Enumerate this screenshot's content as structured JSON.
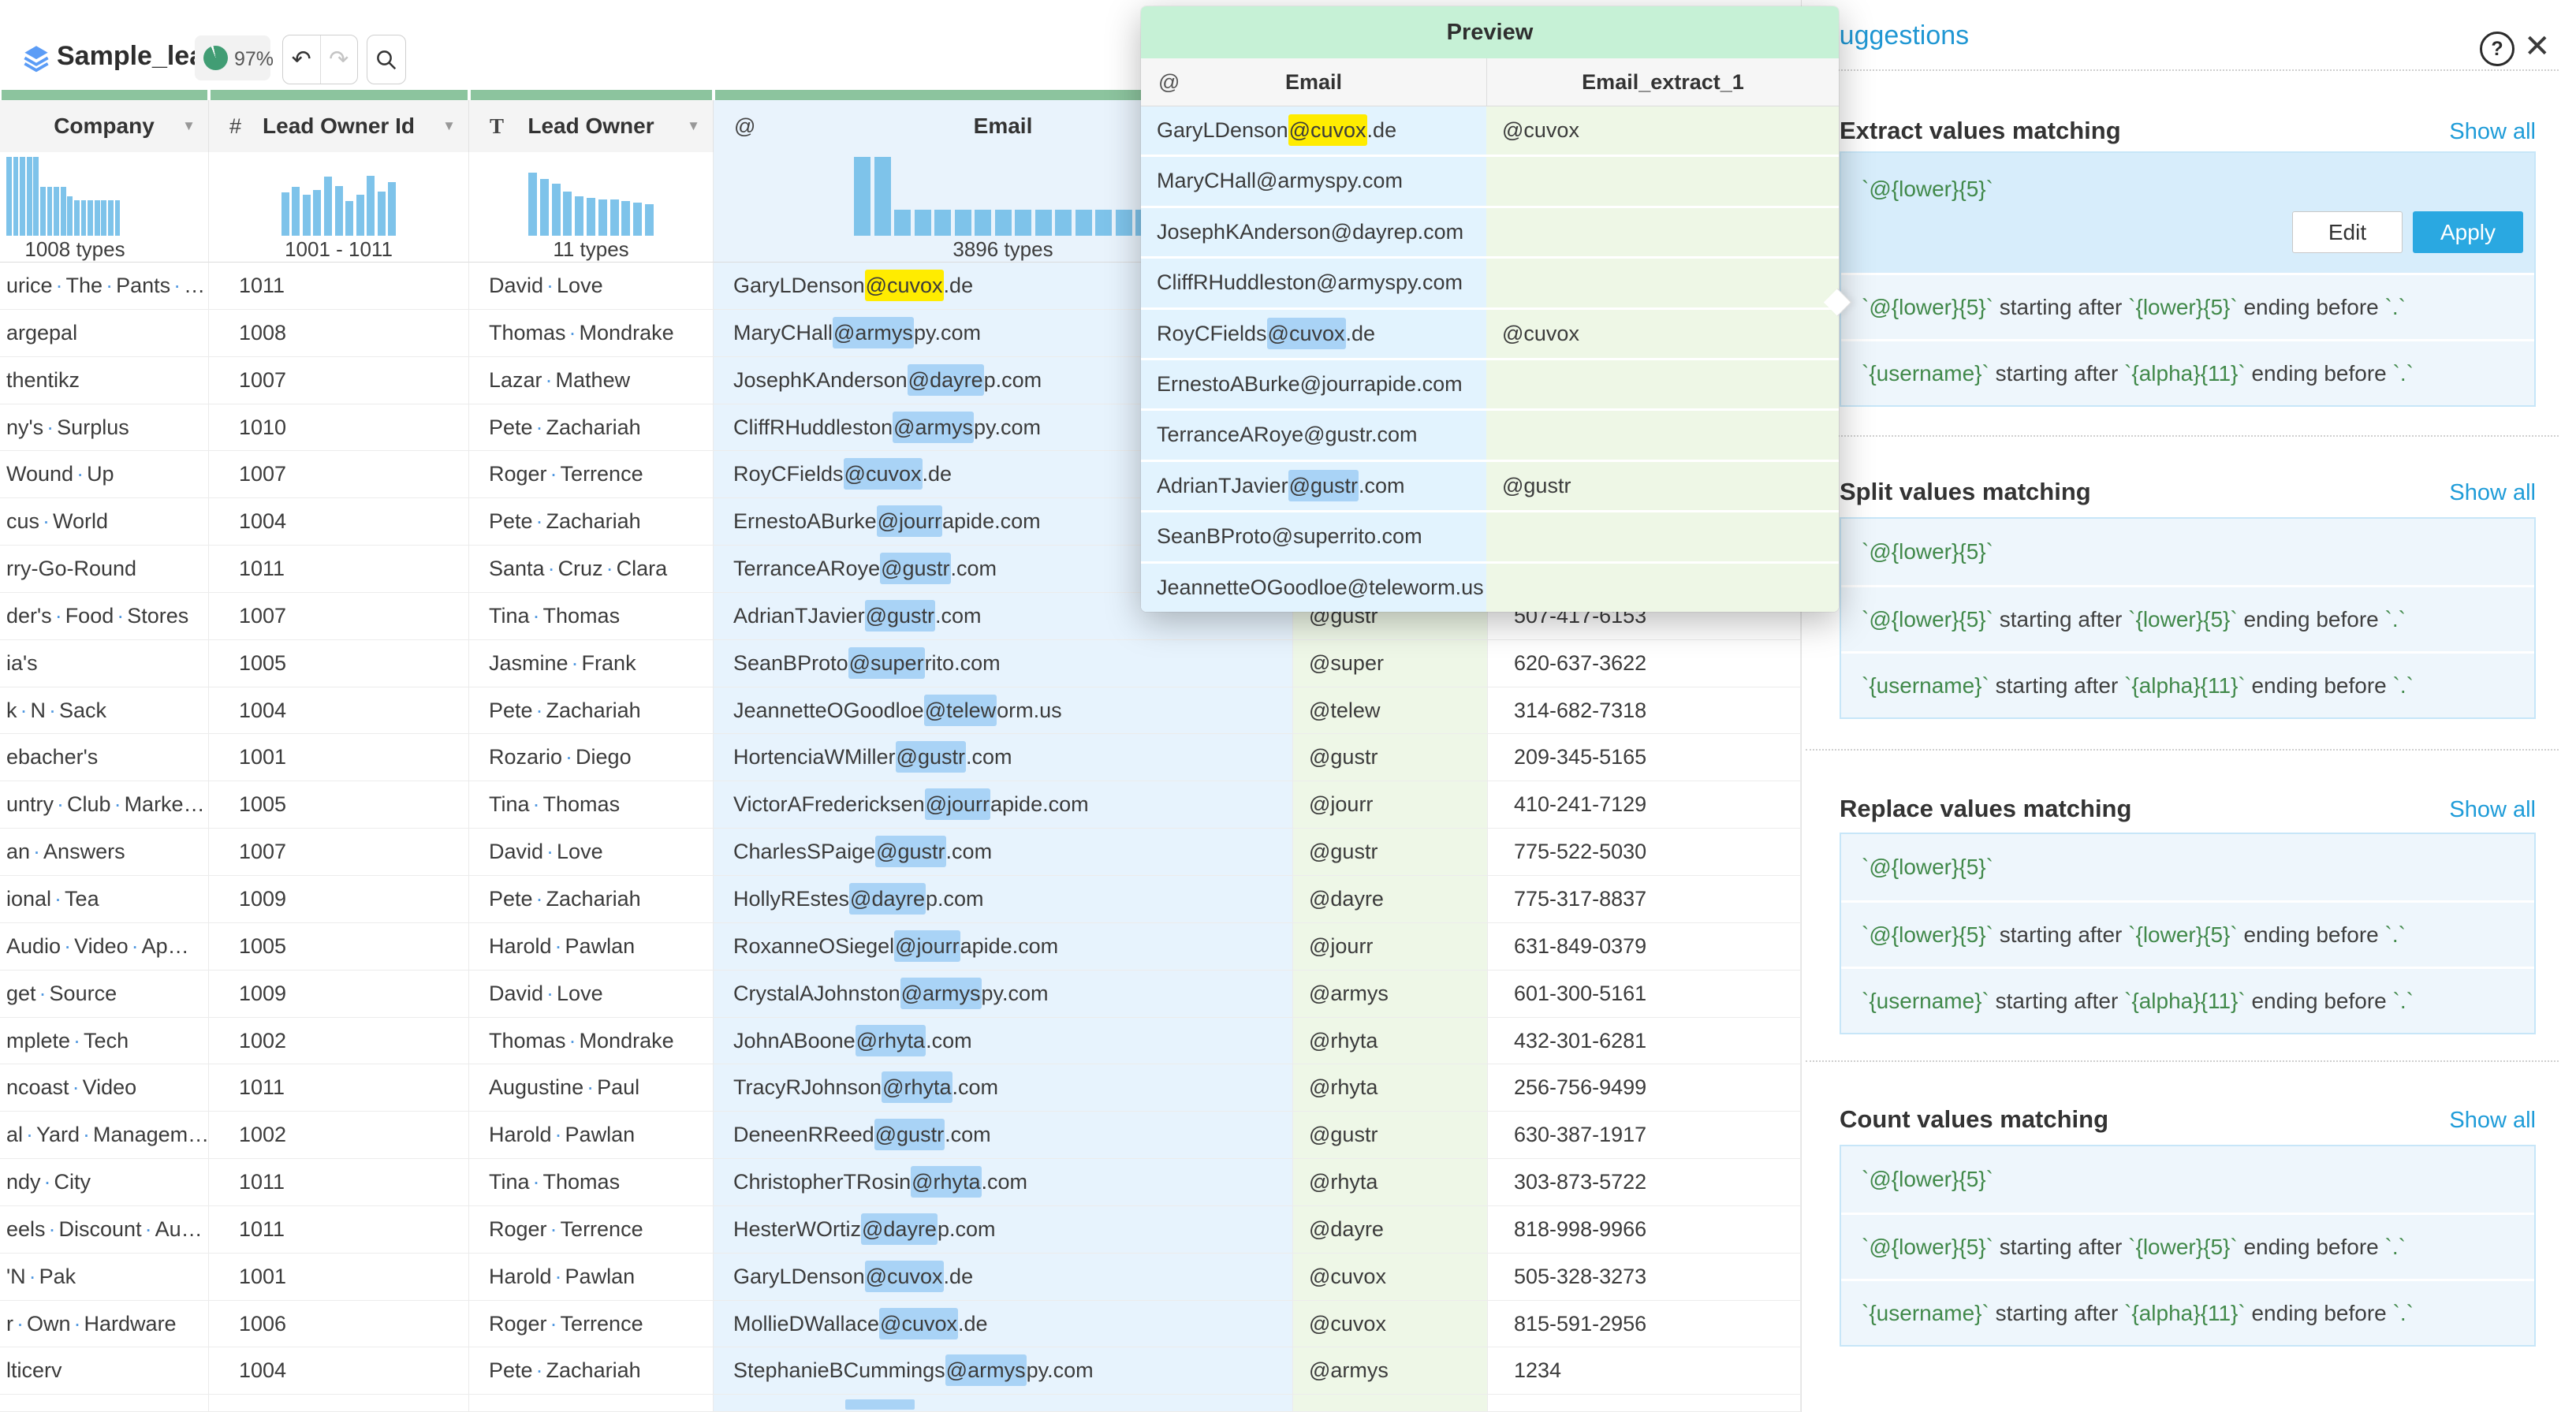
{
  "toolbar": {
    "title": "Sample_leads",
    "quality": "97%"
  },
  "grid": {
    "columns": [
      {
        "id": "company",
        "label": "Company",
        "type_icon": "",
        "types_label": "1008 types",
        "selected": false,
        "hist": [
          100,
          100,
          100,
          100,
          100,
          62,
          62,
          62,
          62,
          50,
          45,
          45,
          45,
          45,
          45,
          45,
          45
        ]
      },
      {
        "id": "lead-owner-id",
        "label": "Lead Owner Id",
        "type_icon": "#",
        "types_label": "1001 - 1011",
        "selected": false,
        "hist": [
          55,
          62,
          52,
          58,
          75,
          63,
          44,
          52,
          76,
          56,
          68
        ]
      },
      {
        "id": "lead-owner",
        "label": "Lead Owner",
        "type_icon": "T",
        "types_label": "11 types",
        "selected": false,
        "hist": [
          80,
          72,
          66,
          56,
          50,
          48,
          46,
          46,
          44,
          42,
          40
        ]
      },
      {
        "id": "email",
        "label": "Email",
        "type_icon": "@",
        "types_label": "3896 types",
        "selected": true,
        "hist": [
          100,
          100,
          33,
          33,
          33,
          33,
          33,
          33,
          33,
          33,
          33,
          33,
          33,
          33,
          33
        ]
      },
      {
        "id": "email-extract-1",
        "label": "",
        "type_icon": "",
        "types_label": "",
        "selected": false,
        "hist": []
      },
      {
        "id": "phone",
        "label": "",
        "type_icon": "",
        "types_label": "",
        "selected": false,
        "hist": []
      }
    ],
    "rows": [
      {
        "company": "urice The Pants …",
        "owner_id": "1011",
        "owner": "David Love",
        "email_pre": "GaryLDenson",
        "email_match": "@cuvox",
        "email_post": ".de",
        "match_color": "yellow",
        "extract": "",
        "phone": ""
      },
      {
        "company": "argepal",
        "owner_id": "1008",
        "owner": "Thomas Mondrake",
        "email_pre": "MaryCHall",
        "email_match": "@armys",
        "email_post": "py.com",
        "match_color": "blue",
        "extract": "",
        "phone": ""
      },
      {
        "company": "thentikz",
        "owner_id": "1007",
        "owner": "Lazar Mathew",
        "email_pre": "JosephKAnderson",
        "email_match": "@dayre",
        "email_post": "p.com",
        "match_color": "blue",
        "extract": "",
        "phone": ""
      },
      {
        "company": "ny's Surplus",
        "owner_id": "1010",
        "owner": "Pete Zachariah",
        "email_pre": "CliffRHuddleston",
        "email_match": "@armys",
        "email_post": "py.com",
        "match_color": "blue",
        "extract": "",
        "phone": ""
      },
      {
        "company": "Wound Up",
        "owner_id": "1007",
        "owner": "Roger Terrence",
        "email_pre": "RoyCFields",
        "email_match": "@cuvox",
        "email_post": ".de",
        "match_color": "blue",
        "extract": "",
        "phone": ""
      },
      {
        "company": "cus World",
        "owner_id": "1004",
        "owner": "Pete Zachariah",
        "email_pre": "ErnestoABurke",
        "email_match": "@jourr",
        "email_post": "apide.com",
        "match_color": "blue",
        "extract": "",
        "phone": ""
      },
      {
        "company": "rry-Go-Round",
        "owner_id": "1011",
        "owner": "Santa Cruz Clara",
        "email_pre": "TerranceARoye",
        "email_match": "@gustr",
        "email_post": ".com",
        "match_color": "blue",
        "extract": "",
        "phone": ""
      },
      {
        "company": "der's Food Stores",
        "owner_id": "1007",
        "owner": "Tina Thomas",
        "email_pre": "AdrianTJavier",
        "email_match": "@gustr",
        "email_post": ".com",
        "match_color": "blue",
        "extract": "@gustr",
        "phone": "507-417-6153"
      },
      {
        "company": "ia's",
        "owner_id": "1005",
        "owner": "Jasmine Frank",
        "email_pre": "SeanBProto",
        "email_match": "@super",
        "email_post": "rito.com",
        "match_color": "blue",
        "extract": "@super",
        "phone": "620-637-3622"
      },
      {
        "company": "k N Sack",
        "owner_id": "1004",
        "owner": "Pete Zachariah",
        "email_pre": "JeannetteOGoodloe",
        "email_match": "@telew",
        "email_post": "orm.us",
        "match_color": "blue",
        "extract": "@telew",
        "phone": "314-682-7318"
      },
      {
        "company": "ebacher's",
        "owner_id": "1001",
        "owner": "Rozario Diego",
        "email_pre": "HortenciaWMiller",
        "email_match": "@gustr",
        "email_post": ".com",
        "match_color": "blue",
        "extract": "@gustr",
        "phone": "209-345-5165"
      },
      {
        "company": "untry Club Marke…",
        "owner_id": "1005",
        "owner": "Tina Thomas",
        "email_pre": "VictorAFredericksen",
        "email_match": "@jourr",
        "email_post": "apide.com",
        "match_color": "blue",
        "extract": "@jourr",
        "phone": "410-241-7129"
      },
      {
        "company": "an Answers",
        "owner_id": "1007",
        "owner": "David Love",
        "email_pre": "CharlesSPaige",
        "email_match": "@gustr",
        "email_post": ".com",
        "match_color": "blue",
        "extract": "@gustr",
        "phone": "775-522-5030"
      },
      {
        "company": "ional Tea",
        "owner_id": "1009",
        "owner": "Pete Zachariah",
        "email_pre": "HollyREstes",
        "email_match": "@dayre",
        "email_post": "p.com",
        "match_color": "blue",
        "extract": "@dayre",
        "phone": "775-317-8837"
      },
      {
        "company": "Audio Video Ap…",
        "owner_id": "1005",
        "owner": "Harold Pawlan",
        "email_pre": "RoxanneOSiegel",
        "email_match": "@jourr",
        "email_post": "apide.com",
        "match_color": "blue",
        "extract": "@jourr",
        "phone": "631-849-0379"
      },
      {
        "company": "get Source",
        "owner_id": "1009",
        "owner": "David Love",
        "email_pre": "CrystalAJohnston",
        "email_match": "@armys",
        "email_post": "py.com",
        "match_color": "blue",
        "extract": "@armys",
        "phone": "601-300-5161"
      },
      {
        "company": "mplete Tech",
        "owner_id": "1002",
        "owner": "Thomas Mondrake",
        "email_pre": "JohnABoone",
        "email_match": "@rhyta",
        "email_post": ".com",
        "match_color": "blue",
        "extract": "@rhyta",
        "phone": "432-301-6281"
      },
      {
        "company": "ncoast Video",
        "owner_id": "1011",
        "owner": "Augustine Paul",
        "email_pre": "TracyRJohnson",
        "email_match": "@rhyta",
        "email_post": ".com",
        "match_color": "blue",
        "extract": "@rhyta",
        "phone": "256-756-9499"
      },
      {
        "company": "al Yard Managem…",
        "owner_id": "1002",
        "owner": "Harold Pawlan",
        "email_pre": "DeneenRReed",
        "email_match": "@gustr",
        "email_post": ".com",
        "match_color": "blue",
        "extract": "@gustr",
        "phone": "630-387-1917"
      },
      {
        "company": "ndy City",
        "owner_id": "1011",
        "owner": "Tina Thomas",
        "email_pre": "ChristopherTRosin",
        "email_match": "@rhyta",
        "email_post": ".com",
        "match_color": "blue",
        "extract": "@rhyta",
        "phone": "303-873-5722"
      },
      {
        "company": "eels Discount Au…",
        "owner_id": "1011",
        "owner": "Roger Terrence",
        "email_pre": "HesterWOrtiz",
        "email_match": "@dayre",
        "email_post": "p.com",
        "match_color": "blue",
        "extract": "@dayre",
        "phone": "818-998-9966"
      },
      {
        "company": "'N Pak",
        "owner_id": "1001",
        "owner": "Harold Pawlan",
        "email_pre": "GaryLDenson",
        "email_match": "@cuvox",
        "email_post": ".de",
        "match_color": "blue",
        "extract": "@cuvox",
        "phone": "505-328-3273"
      },
      {
        "company": "r Own Hardware",
        "owner_id": "1006",
        "owner": "Roger Terrence",
        "email_pre": "MollieDWallace",
        "email_match": "@cuvox",
        "email_post": ".de",
        "match_color": "blue",
        "extract": "@cuvox",
        "phone": "815-591-2956"
      },
      {
        "company": "lticerv",
        "owner_id": "1004",
        "owner": "Pete Zachariah",
        "email_pre": "StephanieBCummings",
        "email_match": "@armys",
        "email_post": "py.com",
        "match_color": "blue",
        "extract": "@armys",
        "phone": "1234"
      }
    ]
  },
  "preview": {
    "title": "Preview",
    "headers": {
      "at": "@",
      "email": "Email",
      "extract": "Email_extract_1"
    },
    "rows": [
      {
        "email_pre": "GaryLDenson",
        "email_match": "@cuvox",
        "email_post": ".de",
        "match_color": "yellow",
        "extract": "@cuvox"
      },
      {
        "email_pre": "MaryCHall@armyspy.com",
        "email_match": "",
        "email_post": "",
        "match_color": "",
        "extract": ""
      },
      {
        "email_pre": "JosephKAnderson@dayrep.com",
        "email_match": "",
        "email_post": "",
        "match_color": "",
        "extract": ""
      },
      {
        "email_pre": "CliffRHuddleston@armyspy.com",
        "email_match": "",
        "email_post": "",
        "match_color": "",
        "extract": ""
      },
      {
        "email_pre": "RoyCFields",
        "email_match": "@cuvox",
        "email_post": ".de",
        "match_color": "blue",
        "extract": "@cuvox"
      },
      {
        "email_pre": "ErnestoABurke@jourrapide.com",
        "email_match": "",
        "email_post": "",
        "match_color": "",
        "extract": ""
      },
      {
        "email_pre": "TerranceARoye@gustr.com",
        "email_match": "",
        "email_post": "",
        "match_color": "",
        "extract": ""
      },
      {
        "email_pre": "AdrianTJavier",
        "email_match": "@gustr",
        "email_post": ".com",
        "match_color": "blue",
        "extract": "@gustr"
      },
      {
        "email_pre": "SeanBProto@superrito.com",
        "email_match": "",
        "email_post": "",
        "match_color": "",
        "extract": ""
      },
      {
        "email_pre": "JeannetteOGoodloe@teleworm.us",
        "email_match": "",
        "email_post": "",
        "match_color": "",
        "extract": ""
      }
    ]
  },
  "panel": {
    "title": "Suggestions",
    "help_icon": "?",
    "close_icon": "✕",
    "show_all_label": "Show all",
    "sections": [
      {
        "title": "Extract values matching",
        "items": [
          {
            "text": "`@{lower}{5}`",
            "selected": true,
            "edit_label": "Edit",
            "apply_label": "Apply"
          },
          {
            "text": "`@{lower}{5}` starting after `{lower}{5}` ending before `.`"
          },
          {
            "text": "`{username}` starting after `{alpha}{11}` ending before `.`"
          }
        ]
      },
      {
        "title": "Split values matching",
        "items": [
          {
            "text": "`@{lower}{5}`"
          },
          {
            "text": "`@{lower}{5}` starting after `{lower}{5}` ending before `.`"
          },
          {
            "text": "`{username}` starting after `{alpha}{11}` ending before `.`"
          }
        ]
      },
      {
        "title": "Replace values matching",
        "items": [
          {
            "text": "`@{lower}{5}`"
          },
          {
            "text": "`@{lower}{5}` starting after `{lower}{5}` ending before `.`"
          },
          {
            "text": "`{username}` starting after `{alpha}{11}` ending before `.`"
          }
        ]
      },
      {
        "title": "Count values matching",
        "items": [
          {
            "text": "`@{lower}{5}`"
          },
          {
            "text": "`@{lower}{5}` starting after `{lower}{5}` ending before `.`"
          },
          {
            "text": "`{username}` starting after `{alpha}{11}` ending before `.`"
          }
        ]
      }
    ]
  },
  "colors": {
    "accent_blue": "#1f9cd8",
    "code_green": "#41894a",
    "highlight_blue": "#a9d3f6",
    "highlight_yellow": "#ffec00",
    "header_green": "#8cc49e",
    "preview_header_green": "#c6f1d6",
    "email_column_bg": "#e7f3fd",
    "extract_column_bg": "#eef7e7",
    "histogram_bar": "#7ec3ea",
    "apply_button_bg": "#2aa8e1",
    "selected_suggestion_bg": "#d7edfb"
  }
}
